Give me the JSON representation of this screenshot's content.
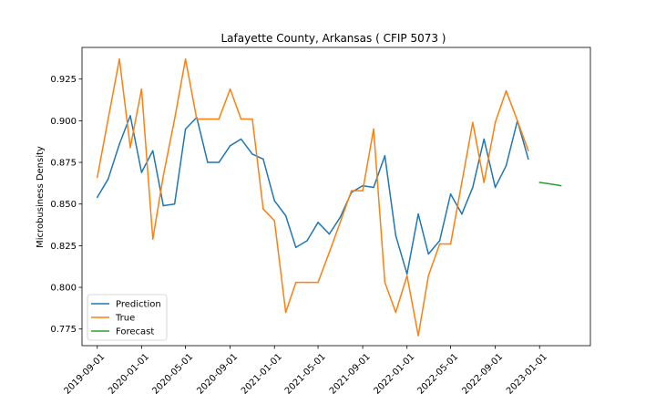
{
  "chart_data": {
    "type": "line",
    "title": "Lafayette County, Arkansas ( CFIP 5073 )",
    "xlabel": "",
    "ylabel": "Microbusiness Density",
    "ylim": [
      0.765,
      0.944
    ],
    "xlim": [
      "2019-07-21",
      "2023-05-21"
    ],
    "x_ticks": [
      "2019-09-01",
      "2020-01-01",
      "2020-05-01",
      "2020-09-01",
      "2021-01-01",
      "2021-05-01",
      "2021-09-01",
      "2022-01-01",
      "2022-05-01",
      "2022-09-01",
      "2023-01-01"
    ],
    "y_ticks": [
      "0.775",
      "0.800",
      "0.825",
      "0.850",
      "0.875",
      "0.900",
      "0.925"
    ],
    "legend_position": "lower-left",
    "grid": false,
    "series": [
      {
        "name": "Prediction",
        "color": "#1f77b4",
        "x": [
          "2019-09-01",
          "2019-10-01",
          "2019-11-01",
          "2019-12-01",
          "2020-01-01",
          "2020-02-01",
          "2020-03-01",
          "2020-04-01",
          "2020-05-01",
          "2020-06-01",
          "2020-07-01",
          "2020-08-01",
          "2020-09-01",
          "2020-10-01",
          "2020-11-01",
          "2020-12-01",
          "2021-01-01",
          "2021-02-01",
          "2021-03-01",
          "2021-04-01",
          "2021-05-01",
          "2021-06-01",
          "2021-07-01",
          "2021-08-01",
          "2021-09-01",
          "2021-10-01",
          "2021-11-01",
          "2021-12-01",
          "2022-01-01",
          "2022-02-01",
          "2022-03-01",
          "2022-04-01",
          "2022-05-01",
          "2022-06-01",
          "2022-07-01",
          "2022-08-01",
          "2022-09-01",
          "2022-10-01",
          "2022-11-01",
          "2022-12-01"
        ],
        "values": [
          0.854,
          0.865,
          0.886,
          0.903,
          0.869,
          0.882,
          0.849,
          0.85,
          0.895,
          0.902,
          0.875,
          0.875,
          0.885,
          0.889,
          0.88,
          0.877,
          0.852,
          0.843,
          0.824,
          0.828,
          0.839,
          0.832,
          0.842,
          0.857,
          0.861,
          0.86,
          0.879,
          0.831,
          0.808,
          0.844,
          0.82,
          0.828,
          0.856,
          0.844,
          0.86,
          0.889,
          0.86,
          0.873,
          0.9,
          0.877
        ]
      },
      {
        "name": "True",
        "color": "#ff7f0e",
        "x": [
          "2019-09-01",
          "2019-10-01",
          "2019-11-01",
          "2019-12-01",
          "2020-01-01",
          "2020-02-01",
          "2020-03-01",
          "2020-04-01",
          "2020-05-01",
          "2020-06-01",
          "2020-07-01",
          "2020-08-01",
          "2020-09-01",
          "2020-10-01",
          "2020-11-01",
          "2020-12-01",
          "2021-01-01",
          "2021-02-01",
          "2021-03-01",
          "2021-04-01",
          "2021-05-01",
          "2021-06-01",
          "2021-07-01",
          "2021-08-01",
          "2021-09-01",
          "2021-10-01",
          "2021-11-01",
          "2021-12-01",
          "2022-01-01",
          "2022-02-01",
          "2022-03-01",
          "2022-04-01",
          "2022-05-01",
          "2022-06-01",
          "2022-07-01",
          "2022-08-01",
          "2022-09-01",
          "2022-10-01",
          "2022-11-01",
          "2022-12-01"
        ],
        "values": [
          0.866,
          0.901,
          0.937,
          0.884,
          0.919,
          0.829,
          0.867,
          0.901,
          0.937,
          0.901,
          0.901,
          0.901,
          0.919,
          0.901,
          0.901,
          0.847,
          0.84,
          0.785,
          0.803,
          0.803,
          0.803,
          0.821,
          0.839,
          0.858,
          0.858,
          0.895,
          0.803,
          0.785,
          0.807,
          0.771,
          0.807,
          0.826,
          0.826,
          0.863,
          0.899,
          0.863,
          0.899,
          0.918,
          0.9,
          0.882
        ]
      },
      {
        "name": "Forecast",
        "color": "#2ca02c",
        "x": [
          "2023-01-01",
          "2023-02-01",
          "2023-03-01"
        ],
        "values": [
          0.863,
          0.862,
          0.861
        ]
      }
    ]
  }
}
